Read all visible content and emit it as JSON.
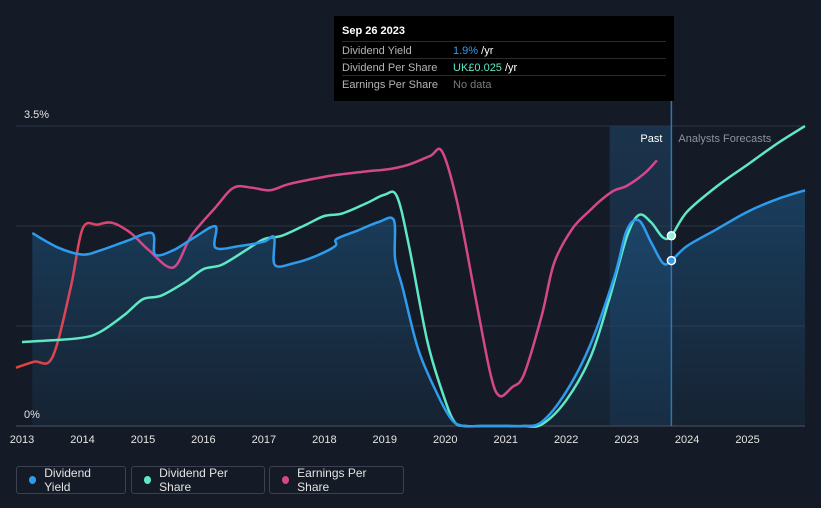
{
  "tooltip": {
    "date": "Sep 26 2023",
    "rows": [
      {
        "label": "Dividend Yield",
        "value": "1.9%",
        "unit": " /yr",
        "color": "#2e9bec"
      },
      {
        "label": "Dividend Per Share",
        "value": "UK£0.025",
        "unit": " /yr",
        "color": "#5ee8c4"
      },
      {
        "label": "Earnings Per Share",
        "value": "No data",
        "unit": "",
        "color": "#7a7a7a"
      }
    ]
  },
  "legend": [
    {
      "label": "Dividend Yield",
      "color": "#2e9bec"
    },
    {
      "label": "Dividend Per Share",
      "color": "#5ee8c4"
    },
    {
      "label": "Earnings Per Share",
      "color": "#d4478a"
    }
  ],
  "chart_data": {
    "type": "line",
    "title": "",
    "xlabel": "",
    "ylabel": "Dividend Yield",
    "xlim": [
      2012.9,
      2025.95
    ],
    "ylim": [
      0,
      3.5
    ],
    "y_tick_labels": [
      "0%",
      "3.5%"
    ],
    "x_ticks": [
      2013,
      2014,
      2015,
      2016,
      2017,
      2018,
      2019,
      2020,
      2021,
      2022,
      2023,
      2024,
      2025
    ],
    "past_label": "Past",
    "forecast_label": "Analysts Forecasts",
    "forecast_start": 2023.74,
    "shaded_region_start": 2022.72,
    "series": [
      {
        "name": "Dividend Yield",
        "unit": "%",
        "color": "#2e9bec",
        "x": [
          2013.17,
          2013.6,
          2014.0,
          2014.3,
          2014.7,
          2015.15,
          2015.2,
          2015.5,
          2015.85,
          2016.2,
          2016.2,
          2016.6,
          2017.0,
          2017.17,
          2017.18,
          2017.5,
          2017.85,
          2018.18,
          2018.2,
          2018.55,
          2018.9,
          2019.15,
          2019.17,
          2019.3,
          2019.55,
          2019.85,
          2020.1,
          2020.3,
          2020.6,
          2021.0,
          2021.3,
          2021.6,
          2022.0,
          2022.4,
          2022.8,
          2023.0,
          2023.2,
          2023.4,
          2023.6,
          2023.74,
          2024.0,
          2024.5,
          2025.0,
          2025.5,
          2025.95
        ],
        "y": [
          2.25,
          2.08,
          2.0,
          2.05,
          2.15,
          2.25,
          2.0,
          2.05,
          2.2,
          2.33,
          2.08,
          2.1,
          2.15,
          2.2,
          1.88,
          1.9,
          1.98,
          2.1,
          2.18,
          2.28,
          2.38,
          2.4,
          1.95,
          1.6,
          0.9,
          0.4,
          0.08,
          0.0,
          0.0,
          0.0,
          0.0,
          0.05,
          0.4,
          0.95,
          1.75,
          2.28,
          2.4,
          2.15,
          1.9,
          1.93,
          2.1,
          2.3,
          2.5,
          2.65,
          2.75
        ]
      },
      {
        "name": "Dividend Per Share",
        "unit": "UK£",
        "color": "#5ee8c4",
        "x": [
          2013.0,
          2013.5,
          2014.0,
          2014.3,
          2014.7,
          2015.0,
          2015.3,
          2015.7,
          2016.0,
          2016.3,
          2016.7,
          2017.0,
          2017.3,
          2017.7,
          2018.0,
          2018.3,
          2018.7,
          2019.0,
          2019.2,
          2019.4,
          2019.7,
          2019.95,
          2020.15,
          2020.35,
          2020.6,
          2021.0,
          2021.3,
          2021.6,
          2022.0,
          2022.4,
          2022.7,
          2023.0,
          2023.2,
          2023.4,
          2023.6,
          2023.74,
          2024.0,
          2024.5,
          2025.0,
          2025.5,
          2025.95
        ],
        "y": [
          0.98,
          1.0,
          1.03,
          1.1,
          1.3,
          1.48,
          1.52,
          1.68,
          1.83,
          1.88,
          2.05,
          2.18,
          2.22,
          2.35,
          2.45,
          2.48,
          2.6,
          2.7,
          2.68,
          2.1,
          1.0,
          0.4,
          0.05,
          0.0,
          0.0,
          0.0,
          0.0,
          0.02,
          0.3,
          0.8,
          1.45,
          2.2,
          2.46,
          2.38,
          2.2,
          2.22,
          2.5,
          2.8,
          3.05,
          3.3,
          3.5
        ]
      },
      {
        "name": "Earnings Per Share",
        "unit": "UK£",
        "color": "#d4478a",
        "x": [
          2012.9,
          2013.2,
          2013.5,
          2013.8,
          2014.0,
          2014.25,
          2014.5,
          2014.8,
          2015.1,
          2015.5,
          2015.8,
          2016.2,
          2016.5,
          2016.8,
          2017.1,
          2017.4,
          2017.8,
          2018.2,
          2018.7,
          2019.1,
          2019.4,
          2019.75,
          2019.95,
          2020.2,
          2020.5,
          2020.75,
          2020.9,
          2021.1,
          2021.3,
          2021.6,
          2021.8,
          2022.1,
          2022.4,
          2022.6,
          2022.8,
          2023.0,
          2023.3,
          2023.5
        ],
        "y": [
          0.68,
          0.75,
          0.8,
          1.6,
          2.3,
          2.35,
          2.37,
          2.25,
          2.05,
          1.85,
          2.22,
          2.55,
          2.78,
          2.78,
          2.75,
          2.82,
          2.88,
          2.93,
          2.97,
          3.0,
          3.05,
          3.15,
          3.2,
          2.6,
          1.5,
          0.6,
          0.35,
          0.45,
          0.6,
          1.3,
          1.9,
          2.3,
          2.52,
          2.65,
          2.75,
          2.8,
          2.95,
          3.1
        ]
      }
    ]
  }
}
